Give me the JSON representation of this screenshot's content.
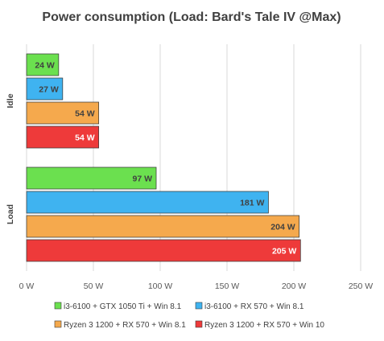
{
  "chart_data": {
    "type": "bar",
    "orientation": "horizontal",
    "title": "Power consumption (Load: Bard's Tale IV @Max)",
    "categories": [
      "Idle",
      "Load"
    ],
    "unit": "W",
    "xlim": [
      0,
      250
    ],
    "xticks": [
      0,
      50,
      100,
      150,
      200,
      250
    ],
    "xtick_labels": [
      "0 W",
      "50 W",
      "100 W",
      "150 W",
      "200 W",
      "250 W"
    ],
    "grid": true,
    "legend_position": "bottom",
    "series": [
      {
        "name": "i3-6100 + GTX 1050 Ti + Win 8.1",
        "values": [
          24,
          97
        ],
        "labels": [
          "24 W",
          "97 W"
        ],
        "color": "#6be04f",
        "label_color": "#404040"
      },
      {
        "name": "i3-6100 + RX 570 + Win 8.1",
        "values": [
          27,
          181
        ],
        "labels": [
          "27 W",
          "181 W"
        ],
        "color": "#3fb3f0",
        "label_color": "#404040"
      },
      {
        "name": "Ryzen 3 1200 + RX 570 + Win 8.1",
        "values": [
          54,
          204
        ],
        "labels": [
          "54 W",
          "204 W"
        ],
        "color": "#f5a94d",
        "label_color": "#404040"
      },
      {
        "name": "Ryzen 3 1200 + RX 570 + Win 10",
        "values": [
          54,
          205
        ],
        "labels": [
          "54 W",
          "205 W"
        ],
        "color": "#ee3a3a",
        "label_color": "#ffffff"
      }
    ]
  }
}
